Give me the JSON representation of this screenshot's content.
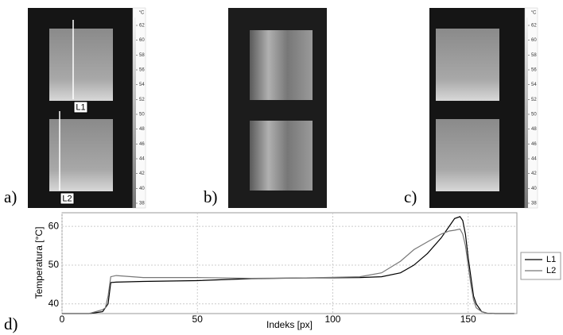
{
  "panels": {
    "a": "a)",
    "b": "b)",
    "c": "c)",
    "d": "d)"
  },
  "colorbar": {
    "unit": "°C",
    "ticks": [
      62,
      60,
      58,
      56,
      54,
      52,
      50,
      48,
      46,
      44,
      42,
      40,
      38
    ]
  },
  "chart_data": {
    "type": "line",
    "x_label": "Indeks [px]",
    "y_label": "Temperatura [°C]",
    "x": [
      0,
      10,
      15,
      16,
      17,
      18,
      20,
      30,
      50,
      70,
      90,
      110,
      118,
      125,
      130,
      135,
      140,
      143,
      145,
      147,
      148,
      149,
      150,
      151,
      152,
      153,
      155,
      157,
      160,
      167
    ],
    "series": [
      {
        "name": "L1",
        "color": "#000000",
        "values": [
          37.5,
          37.5,
          38,
          39,
          40,
          45.5,
          45.6,
          45.8,
          46,
          46.5,
          46.7,
          46.8,
          47,
          48,
          50,
          53,
          57,
          60,
          62,
          62.5,
          61.5,
          58,
          52,
          47,
          42,
          40,
          38,
          37.6,
          37.5,
          37.5
        ]
      },
      {
        "name": "L2",
        "color": "#777777",
        "values": [
          37.5,
          37.5,
          38.5,
          39,
          42,
          47,
          47.3,
          46.8,
          46.8,
          46.6,
          46.7,
          47,
          48,
          51,
          54,
          56,
          58,
          58.8,
          59,
          59.3,
          58,
          55,
          50,
          45,
          41,
          39,
          38,
          37.6,
          37.5,
          37.5
        ]
      }
    ],
    "xlim": [
      0,
      168
    ],
    "ylim": [
      37.5,
      63.5
    ],
    "xticks": [
      0,
      50,
      100,
      150
    ],
    "yticks": [
      40,
      50,
      60
    ],
    "grid": true,
    "legend": "right"
  }
}
